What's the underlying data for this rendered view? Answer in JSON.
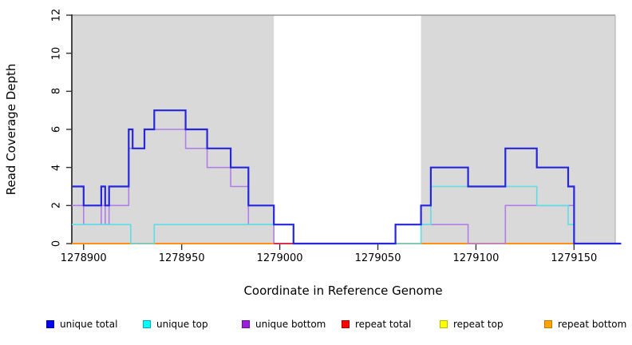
{
  "figure_title": "",
  "axes": {
    "y_label": "Read Coverage Depth",
    "x_label": "Coordinate in Reference Genome"
  },
  "chart_data": {
    "type": "line",
    "subtype": "step-coverage",
    "title": "",
    "xlabel": "Coordinate in Reference Genome",
    "ylabel": "Read Coverage Depth",
    "xlim": [
      1278894,
      1279174
    ],
    "ylim": [
      0,
      12
    ],
    "x_ticks": [
      1278900,
      1278950,
      1279000,
      1279050,
      1279100,
      1279150
    ],
    "y_ticks": [
      0,
      2,
      4,
      6,
      8,
      10,
      12
    ],
    "grid": false,
    "legend_position": "bottom",
    "plot_background": "#ffffff",
    "shaded_regions": [
      {
        "from": 1278894,
        "to": 1278997,
        "color": "#d9d9d9"
      },
      {
        "from": 1279072,
        "to": 1279171,
        "color": "#d9d9d9"
      }
    ],
    "box_color": "#999999",
    "axis_color": "#333333",
    "series": [
      {
        "name": "repeat bottom",
        "color": "#ff9015",
        "width": 2,
        "points": [
          [
            1278894,
            0
          ],
          [
            1279171,
            0
          ]
        ]
      },
      {
        "name": "repeat top",
        "color": "#ffff00",
        "width": 1.6,
        "points": []
      },
      {
        "name": "unique bottom",
        "color": "#b07ee8",
        "width": 1.6,
        "points": [
          [
            1278894,
            2
          ],
          [
            1278900,
            1
          ],
          [
            1278909,
            2
          ],
          [
            1278911,
            1
          ],
          [
            1278913,
            2
          ],
          [
            1278923,
            5
          ],
          [
            1278931,
            6
          ],
          [
            1278952,
            5
          ],
          [
            1278963,
            4
          ],
          [
            1278975,
            3
          ],
          [
            1278984,
            1
          ],
          [
            1278997,
            0
          ],
          [
            1279059,
            1
          ],
          [
            1279096,
            0
          ],
          [
            1279115,
            2
          ],
          [
            1279150,
            0
          ],
          [
            1279174,
            0
          ]
        ]
      },
      {
        "name": "repeat total",
        "color": "#dd2244",
        "width": 1.8,
        "points": [
          [
            1278997,
            0
          ],
          [
            1279007,
            0
          ]
        ]
      },
      {
        "name": "unique top",
        "color": "#5fdde6",
        "width": 1.6,
        "points": [
          [
            1278894,
            1
          ],
          [
            1278924,
            0
          ],
          [
            1278936,
            1
          ],
          [
            1279007,
            0
          ],
          [
            1279072,
            1
          ],
          [
            1279077,
            3
          ],
          [
            1279131,
            2
          ],
          [
            1279147,
            1
          ],
          [
            1279150,
            0
          ],
          [
            1279174,
            0
          ]
        ]
      },
      {
        "name": "unique total",
        "color": "#2626dd",
        "width": 2.2,
        "points": [
          [
            1278894,
            3
          ],
          [
            1278900,
            2
          ],
          [
            1278909,
            3
          ],
          [
            1278911,
            2
          ],
          [
            1278913,
            3
          ],
          [
            1278923,
            6
          ],
          [
            1278925,
            5
          ],
          [
            1278931,
            6
          ],
          [
            1278936,
            7
          ],
          [
            1278952,
            6
          ],
          [
            1278963,
            5
          ],
          [
            1278975,
            4
          ],
          [
            1278984,
            2
          ],
          [
            1278997,
            1
          ],
          [
            1279007,
            0
          ],
          [
            1279059,
            1
          ],
          [
            1279072,
            2
          ],
          [
            1279077,
            4
          ],
          [
            1279096,
            3
          ],
          [
            1279115,
            5
          ],
          [
            1279131,
            4
          ],
          [
            1279147,
            3
          ],
          [
            1279150,
            0
          ],
          [
            1279174,
            0
          ]
        ]
      }
    ],
    "legend": [
      {
        "label": "unique total",
        "fill": "#0000ee",
        "border": "#0000b0"
      },
      {
        "label": "unique top",
        "fill": "#00ffff",
        "border": "#00a8b0"
      },
      {
        "label": "unique bottom",
        "fill": "#9a1fd8",
        "border": "#6a0fa0"
      },
      {
        "label": "repeat total",
        "fill": "#ff0000",
        "border": "#b00000"
      },
      {
        "label": "repeat top",
        "fill": "#ffff00",
        "border": "#b8b800"
      },
      {
        "label": "repeat bottom",
        "fill": "#ffa500",
        "border": "#c07800"
      }
    ]
  }
}
